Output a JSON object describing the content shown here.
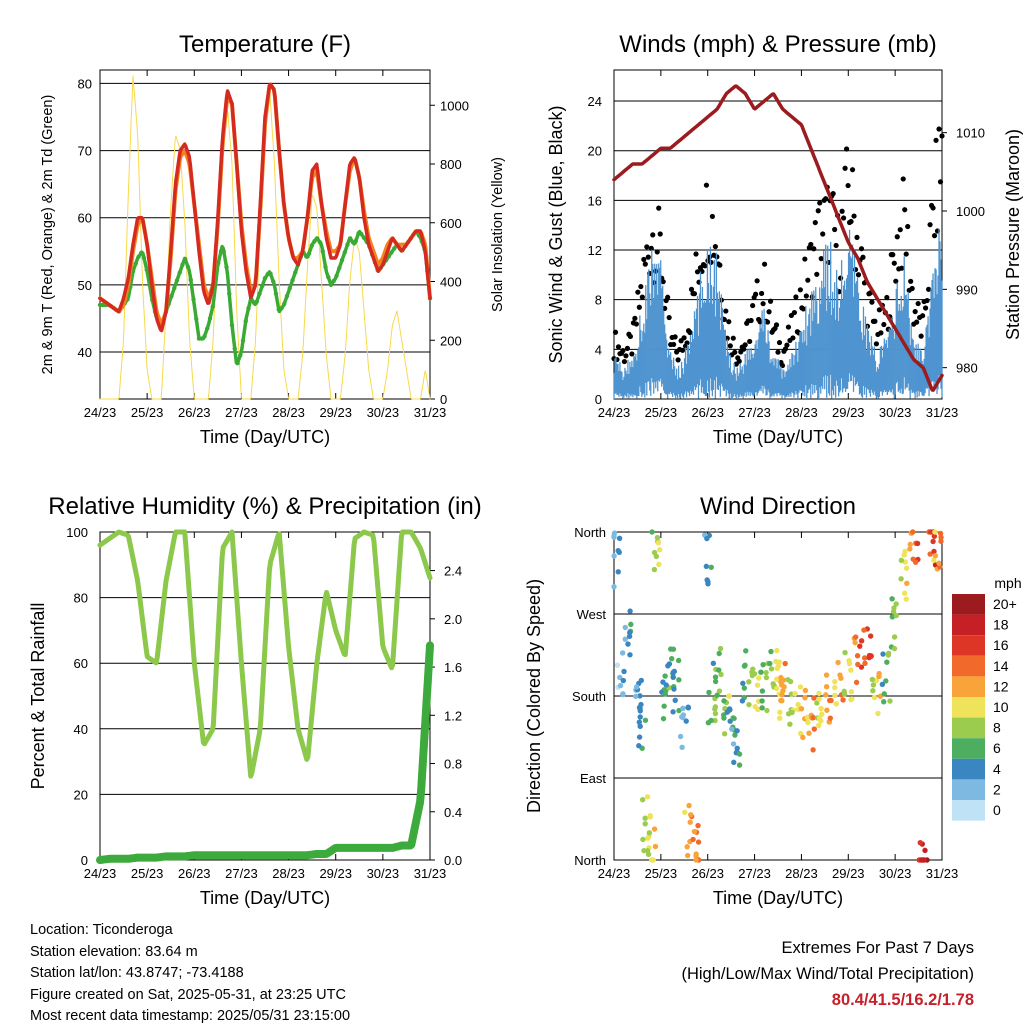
{
  "x_ticks": [
    "24/23",
    "25/23",
    "26/23",
    "27/23",
    "28/23",
    "29/23",
    "30/23",
    "31/23"
  ],
  "x_label": "Time (Day/UTC)",
  "colors": {
    "temp_red": "#d42a1f",
    "temp_orange": "#f5821f",
    "dewpoint_green": "#3aaa35",
    "solar_yellow": "#f7d94c",
    "wind_blue": "#4f94d0",
    "gust_black": "#000000",
    "pressure_maroon": "#9b1b1f",
    "rh_lightgreen": "#8cc84b",
    "precip_green": "#3daa3d",
    "extremes_red": "#c8202a"
  },
  "chart_data": [
    {
      "type": "line",
      "title": "Temperature (F)",
      "xlabel": "Time (Day/UTC)",
      "ylabel": "2m & 9m T (Red, Orange) & 2m Td (Green)",
      "y2label": "Solar Insolation (Yellow)",
      "ylim": [
        33,
        82
      ],
      "y_ticks": [
        40,
        50,
        60,
        70,
        80
      ],
      "y2lim": [
        0,
        1120
      ],
      "y2_ticks": [
        0,
        200,
        400,
        600,
        800,
        1000
      ],
      "x": [
        0,
        0.2,
        0.4,
        0.5,
        0.6,
        0.7,
        0.8,
        0.9,
        1.0,
        1.1,
        1.2,
        1.3,
        1.4,
        1.5,
        1.6,
        1.7,
        1.8,
        1.9,
        2.0,
        2.1,
        2.2,
        2.3,
        2.4,
        2.5,
        2.6,
        2.7,
        2.8,
        2.9,
        3.0,
        3.1,
        3.2,
        3.3,
        3.4,
        3.5,
        3.6,
        3.7,
        3.8,
        3.9,
        4.0,
        4.1,
        4.2,
        4.3,
        4.4,
        4.5,
        4.6,
        4.7,
        4.8,
        4.9,
        5.0,
        5.1,
        5.2,
        5.3,
        5.4,
        5.5,
        5.6,
        5.7,
        5.8,
        5.9,
        6.0,
        6.1,
        6.2,
        6.3,
        6.4,
        6.5,
        6.6,
        6.7,
        6.8,
        6.9,
        7.0
      ],
      "series": [
        {
          "name": "2m T",
          "values": [
            48,
            47,
            46,
            48,
            51,
            56,
            60,
            60,
            56,
            50,
            45,
            43,
            46,
            55,
            65,
            70,
            71,
            69,
            62,
            55,
            49,
            47,
            50,
            60,
            72,
            79,
            77,
            68,
            58,
            52,
            48,
            50,
            62,
            75,
            80,
            79,
            70,
            62,
            57,
            54,
            53,
            55,
            60,
            67,
            68,
            62,
            57,
            54,
            54,
            56,
            62,
            68,
            69,
            66,
            60,
            56,
            54,
            52,
            53,
            55,
            57,
            56,
            55,
            56,
            57,
            58,
            58,
            55,
            48
          ]
        },
        {
          "name": "9m T",
          "values": [
            48,
            47,
            46,
            47,
            50,
            55,
            59,
            60,
            56,
            51,
            46,
            44,
            46,
            54,
            64,
            69,
            70,
            68,
            62,
            56,
            50,
            48,
            50,
            59,
            71,
            78,
            77,
            68,
            59,
            53,
            49,
            50,
            61,
            74,
            80,
            79,
            70,
            62,
            57,
            54,
            54,
            55,
            60,
            66,
            67,
            62,
            58,
            55,
            55,
            56,
            62,
            67,
            69,
            66,
            61,
            57,
            55,
            53,
            54,
            56,
            57,
            56,
            56,
            56,
            57,
            58,
            58,
            56,
            48
          ]
        },
        {
          "name": "2m Td",
          "values": [
            47,
            47,
            46,
            47,
            48,
            52,
            54,
            55,
            52,
            48,
            45,
            44,
            46,
            48,
            50,
            52,
            54,
            52,
            47,
            42,
            42,
            44,
            47,
            53,
            56,
            52,
            44,
            38,
            40,
            45,
            48,
            47,
            49,
            51,
            52,
            50,
            46,
            47,
            49,
            51,
            53,
            55,
            54,
            56,
            57,
            56,
            52,
            50,
            51,
            53,
            55,
            57,
            56,
            58,
            57,
            56,
            54,
            52,
            53,
            54,
            55,
            56,
            55,
            56,
            57,
            58,
            57,
            55,
            48
          ]
        },
        {
          "name": "Solar Insolation",
          "values": [
            0,
            0,
            0,
            200,
            700,
            1100,
            900,
            400,
            100,
            0,
            0,
            0,
            300,
            650,
            900,
            850,
            600,
            200,
            0,
            0,
            0,
            0,
            200,
            600,
            850,
            1000,
            800,
            300,
            0,
            0,
            0,
            200,
            600,
            900,
            1050,
            800,
            400,
            100,
            0,
            0,
            0,
            150,
            450,
            700,
            650,
            400,
            150,
            0,
            0,
            0,
            150,
            400,
            550,
            500,
            300,
            100,
            0,
            0,
            0,
            100,
            250,
            300,
            200,
            100,
            0,
            0,
            0,
            100,
            0
          ]
        }
      ]
    },
    {
      "type": "line",
      "title": "Winds (mph) & Pressure (mb)",
      "xlabel": "Time (Day/UTC)",
      "ylabel": "Sonic Wind & Gust (Blue, Black)",
      "y2label": "Station Pressure (Maroon)",
      "ylim": [
        0,
        26.5
      ],
      "y_ticks": [
        0,
        4,
        8,
        12,
        16,
        20,
        24
      ],
      "y2lim": [
        976,
        1018
      ],
      "y2_ticks": [
        980,
        990,
        1000,
        1010
      ],
      "x": [
        0,
        0.2,
        0.4,
        0.6,
        0.8,
        1.0,
        1.2,
        1.4,
        1.6,
        1.8,
        2.0,
        2.2,
        2.4,
        2.6,
        2.8,
        3.0,
        3.2,
        3.4,
        3.6,
        3.8,
        4.0,
        4.2,
        4.4,
        4.6,
        4.8,
        5.0,
        5.2,
        5.4,
        5.6,
        5.8,
        6.0,
        6.2,
        6.4,
        6.6,
        6.8,
        7.0
      ],
      "series": [
        {
          "name": "Sonic Wind",
          "values": [
            3,
            2,
            3,
            6,
            10,
            9,
            3,
            2,
            4,
            7,
            11,
            9,
            4,
            2,
            3,
            4,
            6,
            3,
            2,
            3,
            5,
            7,
            9,
            10,
            8,
            11,
            8,
            5,
            3,
            4,
            7,
            9,
            4,
            3,
            8,
            13
          ]
        },
        {
          "name": "Gust",
          "values": [
            5,
            4,
            5,
            10,
            15,
            13,
            5,
            4,
            7,
            12,
            17,
            14,
            7,
            4,
            5,
            8,
            10,
            6,
            4,
            6,
            9,
            12,
            15,
            16,
            13,
            19,
            14,
            9,
            6,
            7,
            13,
            16,
            8,
            6,
            16,
            22
          ]
        },
        {
          "name": "Station Pressure",
          "values": [
            1004,
            1005,
            1006,
            1006,
            1007,
            1008,
            1008,
            1009,
            1010,
            1011,
            1012,
            1013,
            1015,
            1016,
            1015,
            1013,
            1014,
            1015,
            1013,
            1012,
            1011,
            1008,
            1005,
            1002,
            999,
            996,
            994,
            991,
            989,
            987,
            985,
            983,
            981,
            980,
            977,
            979
          ]
        }
      ]
    },
    {
      "type": "line",
      "title": "Relative Humidity (%) & Precipitation (in)",
      "xlabel": "Time (Day/UTC)",
      "ylabel": "Percent & Total Rainfall",
      "ylim": [
        0,
        100
      ],
      "y_ticks": [
        0,
        20,
        40,
        60,
        80,
        100
      ],
      "y2lim": [
        0,
        2.72
      ],
      "y2_ticks": [
        "0.0",
        "0.4",
        "0.8",
        "1.2",
        "1.6",
        "2.0",
        "2.4"
      ],
      "x": [
        0,
        0.2,
        0.4,
        0.6,
        0.8,
        1.0,
        1.2,
        1.4,
        1.6,
        1.8,
        2.0,
        2.2,
        2.4,
        2.6,
        2.8,
        3.0,
        3.2,
        3.4,
        3.6,
        3.8,
        4.0,
        4.2,
        4.4,
        4.6,
        4.8,
        5.0,
        5.2,
        5.4,
        5.6,
        5.8,
        6.0,
        6.2,
        6.4,
        6.6,
        6.8,
        7.0
      ],
      "series": [
        {
          "name": "Relative Humidity",
          "values": [
            96,
            98,
            100,
            99,
            85,
            62,
            60,
            85,
            100,
            100,
            60,
            35,
            40,
            95,
            100,
            60,
            25,
            40,
            90,
            100,
            65,
            40,
            30,
            60,
            82,
            70,
            62,
            98,
            100,
            99,
            65,
            58,
            100,
            100,
            95,
            86
          ]
        },
        {
          "name": "Total Precipitation",
          "values": [
            0,
            0.01,
            0.01,
            0.01,
            0.02,
            0.02,
            0.02,
            0.03,
            0.03,
            0.03,
            0.04,
            0.04,
            0.04,
            0.04,
            0.04,
            0.04,
            0.04,
            0.04,
            0.04,
            0.04,
            0.04,
            0.04,
            0.04,
            0.05,
            0.05,
            0.1,
            0.1,
            0.1,
            0.1,
            0.1,
            0.1,
            0.1,
            0.12,
            0.12,
            0.5,
            1.78
          ]
        }
      ]
    },
    {
      "type": "scatter",
      "title": "Wind Direction",
      "xlabel": "Time (Day/UTC)",
      "ylabel": "Direction (Colored By Speed)",
      "y_ticks": [
        "North",
        "East",
        "South",
        "West",
        "North"
      ],
      "ylim": [
        0,
        360
      ],
      "legend_title": "mph",
      "legend_labels": [
        "20+",
        "18",
        "16",
        "14",
        "12",
        "10",
        "8",
        "6",
        "4",
        "2",
        "0"
      ],
      "legend_colors": [
        "#9b1b1f",
        "#c52026",
        "#de3626",
        "#f26a2b",
        "#f9a33b",
        "#eee35a",
        "#9ccc4e",
        "#4cae5e",
        "#3a86c1",
        "#7db9e1",
        "#bfe2f7"
      ],
      "x": [
        0.05,
        0.15,
        0.3,
        0.5,
        0.6,
        0.7,
        0.8,
        0.9,
        1.1,
        1.2,
        1.3,
        1.5,
        1.6,
        1.8,
        2.0,
        2.1,
        2.2,
        2.4,
        2.5,
        2.6,
        2.8,
        3.0,
        3.2,
        3.4,
        3.5,
        3.6,
        3.8,
        4.0,
        4.2,
        4.4,
        4.6,
        4.8,
        5.0,
        5.2,
        5.4,
        5.6,
        5.8,
        6.0,
        6.2,
        6.4,
        6.6,
        6.8,
        6.9
      ],
      "direction_deg": [
        330,
        200,
        250,
        190,
        150,
        40,
        20,
        345,
        180,
        210,
        190,
        150,
        30,
        20,
        330,
        180,
        210,
        160,
        150,
        130,
        200,
        180,
        190,
        200,
        170,
        190,
        170,
        160,
        150,
        170,
        180,
        190,
        200,
        220,
        230,
        190,
        200,
        260,
        310,
        340,
        10,
        350,
        340
      ],
      "speed_mph": [
        3,
        2,
        4,
        3,
        5,
        9,
        10,
        8,
        6,
        5,
        4,
        3,
        12,
        14,
        4,
        7,
        6,
        8,
        5,
        4,
        6,
        9,
        7,
        8,
        10,
        12,
        9,
        11,
        12,
        10,
        13,
        12,
        9,
        14,
        15,
        10,
        6,
        8,
        10,
        14,
        18,
        16,
        12
      ]
    }
  ],
  "footer": {
    "location": "Location: Ticonderoga",
    "elevation": "Station elevation: 83.64 m",
    "latlon": "Station lat/lon: 43.8747; -73.4188",
    "created": "Figure created on Sat, 2025-05-31, at 23:25 UTC",
    "recent": "Most recent data timestamp: 2025/05/31 23:15:00"
  },
  "extremes": {
    "title": "Extremes For Past 7 Days",
    "subtitle": "(High/Low/Max Wind/Total Precipitation)",
    "values": "80.4/41.5/16.2/1.78"
  }
}
